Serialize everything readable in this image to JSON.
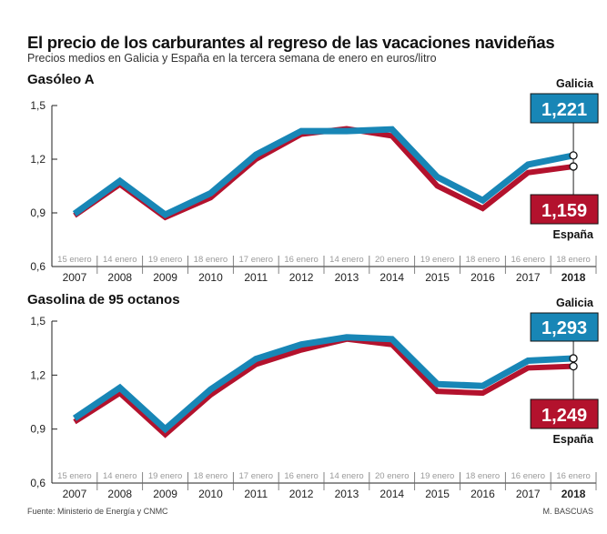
{
  "title": "El precio de los carburantes al regreso de las vacaciones navideñas",
  "subtitle": "Precios medios en Galicia y España en la tercera semana de enero en euros/litro",
  "source": "Fuente: Ministerio de Energía y CNMC",
  "author": "M. BASCUAS",
  "colors": {
    "galicia": "#1886b6",
    "espana": "#b3122d"
  },
  "chart_data": [
    {
      "type": "line",
      "title": "Gasóleo A",
      "categories": [
        "2007",
        "2008",
        "2009",
        "2010",
        "2011",
        "2012",
        "2013",
        "2014",
        "2015",
        "2016",
        "2017",
        "2018"
      ],
      "dates": [
        "15 enero",
        "14 enero",
        "19 enero",
        "18 enero",
        "17 enero",
        "16 enero",
        "14 enero",
        "20 enero",
        "19 enero",
        "18 enero",
        "16 enero",
        "18 enero"
      ],
      "yticks": [
        "0,6",
        "0,9",
        "1,2",
        "1,5"
      ],
      "ylim": [
        0.6,
        1.5
      ],
      "series": [
        {
          "name": "Galicia",
          "values": [
            0.895,
            1.078,
            0.89,
            1.01,
            1.225,
            1.357,
            1.357,
            1.367,
            1.1,
            0.97,
            1.17,
            1.221
          ],
          "last_label": "1,221"
        },
        {
          "name": "España",
          "values": [
            0.885,
            1.06,
            0.875,
            0.985,
            1.2,
            1.34,
            1.37,
            1.33,
            1.05,
            0.925,
            1.125,
            1.159
          ],
          "last_label": "1,159"
        }
      ]
    },
    {
      "type": "line",
      "title": "Gasolina de 95 octanos",
      "categories": [
        "2007",
        "2008",
        "2009",
        "2010",
        "2011",
        "2012",
        "2013",
        "2014",
        "2015",
        "2016",
        "2017",
        "2018"
      ],
      "dates": [
        "15 enero",
        "14 enero",
        "19 enero",
        "18 enero",
        "17 enero",
        "16 enero",
        "14 enero",
        "20 enero",
        "19 enero",
        "18 enero",
        "16 enero",
        "16 enero"
      ],
      "yticks": [
        "0,6",
        "0,9",
        "1,2",
        "1,5"
      ],
      "ylim": [
        0.6,
        1.5
      ],
      "series": [
        {
          "name": "Galicia",
          "values": [
            0.96,
            1.13,
            0.9,
            1.12,
            1.29,
            1.37,
            1.41,
            1.4,
            1.15,
            1.14,
            1.28,
            1.293
          ],
          "last_label": "1,293"
        },
        {
          "name": "España",
          "values": [
            0.94,
            1.1,
            0.87,
            1.09,
            1.26,
            1.34,
            1.4,
            1.37,
            1.11,
            1.1,
            1.24,
            1.249
          ],
          "last_label": "1,249"
        }
      ]
    }
  ]
}
